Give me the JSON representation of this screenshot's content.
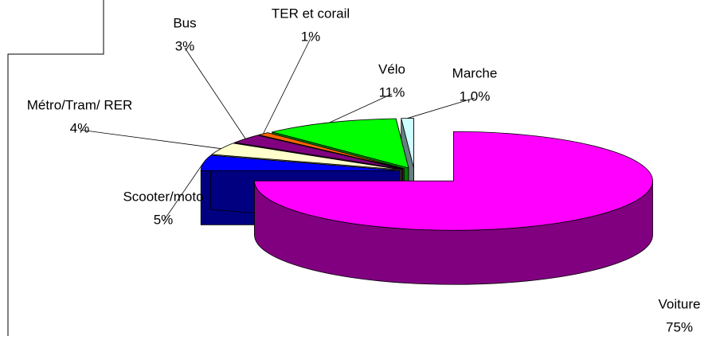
{
  "chart_data": {
    "type": "pie3d",
    "categories": [
      "Voiture",
      "Scooter/moto",
      "Métro/Tram/ RER",
      "Bus",
      "TER et corail",
      "Vélo",
      "Marche"
    ],
    "values": [
      75,
      5,
      4,
      3,
      1,
      11,
      1
    ],
    "value_labels": [
      "75%",
      "5%",
      "4%",
      "3%",
      "1%",
      "11%",
      "1,0%"
    ],
    "colors": [
      "#ff00ff",
      "#0000ff",
      "#ffffcc",
      "#800080",
      "#ff6600",
      "#00ff00",
      "#ccffff"
    ]
  }
}
